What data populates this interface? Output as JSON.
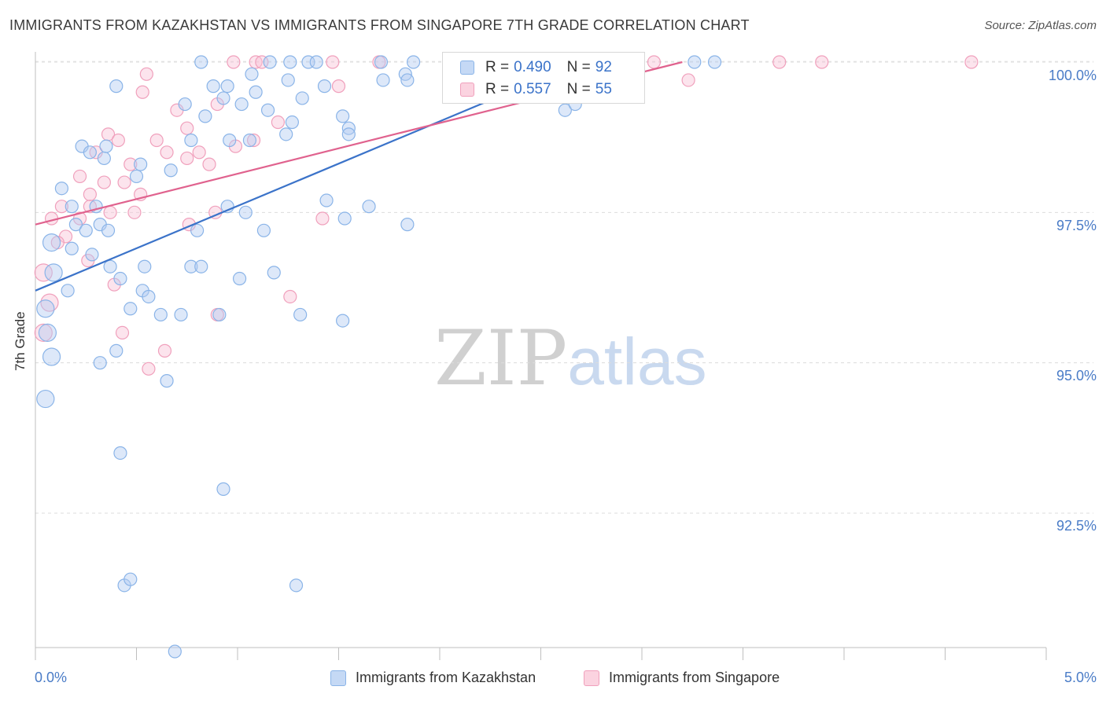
{
  "header": {
    "title": "IMMIGRANTS FROM KAZAKHSTAN VS IMMIGRANTS FROM SINGAPORE 7TH GRADE CORRELATION CHART",
    "source": "Source: ZipAtlas.com"
  },
  "watermark": {
    "zip": "ZIP",
    "atlas": "atlas"
  },
  "legend": {
    "r_label": "R =",
    "n_label": "N =",
    "rows": [
      {
        "r": "0.490",
        "n": "92",
        "color": "#8ab4e8",
        "fill": "#c5d9f5"
      },
      {
        "r": "0.557",
        "n": "55",
        "color": "#f0a0bc",
        "fill": "#fbd3e0"
      }
    ]
  },
  "bottom_legend": [
    {
      "label": "Immigrants from Kazakhstan",
      "color": "#8ab4e8",
      "fill": "#c5d9f5"
    },
    {
      "label": "Immigrants from Singapore",
      "color": "#f0a0bc",
      "fill": "#fbd3e0"
    }
  ],
  "chart_data": {
    "type": "scatter",
    "title": "IMMIGRANTS FROM KAZAKHSTAN VS IMMIGRANTS FROM SINGAPORE 7TH GRADE CORRELATION CHART",
    "ylabel": "7th Grade",
    "xlabel": "",
    "xlim": [
      0,
      5
    ],
    "ylim": [
      90.0,
      100.4
    ],
    "x_tick_labels": [
      "0.0%",
      "5.0%"
    ],
    "y_ticks": [
      92.5,
      95.0,
      97.5,
      100.0
    ],
    "y_tick_labels": [
      "92.5%",
      "95.0%",
      "97.5%",
      "100.0%"
    ],
    "grid": "horizontal dashed",
    "colors": {
      "kazakhstan": "#3b73c9",
      "singapore": "#e0628e"
    },
    "series": [
      {
        "name": "Immigrants from Kazakhstan",
        "color": "#3b73c9",
        "trend": {
          "x": [
            0.0,
            2.7
          ],
          "y": [
            96.2,
            100.0
          ]
        },
        "points": [
          [
            0.82,
            100.0
          ],
          [
            0.95,
            99.6
          ],
          [
            1.07,
            99.8
          ],
          [
            1.16,
            100.0
          ],
          [
            1.09,
            99.5
          ],
          [
            1.26,
            100.0
          ],
          [
            1.35,
            100.0
          ],
          [
            1.39,
            100.0
          ],
          [
            1.71,
            100.0
          ],
          [
            1.87,
            100.0
          ],
          [
            2.43,
            100.0
          ],
          [
            2.93,
            100.0
          ],
          [
            3.26,
            100.0
          ],
          [
            3.36,
            100.0
          ],
          [
            0.74,
            99.3
          ],
          [
            0.88,
            99.6
          ],
          [
            1.02,
            99.3
          ],
          [
            1.15,
            99.2
          ],
          [
            1.25,
            99.7
          ],
          [
            1.43,
            99.6
          ],
          [
            1.72,
            99.7
          ],
          [
            1.83,
            99.8
          ],
          [
            1.84,
            99.7
          ],
          [
            2.62,
            99.2
          ],
          [
            2.67,
            99.3
          ],
          [
            0.84,
            99.1
          ],
          [
            0.93,
            99.4
          ],
          [
            1.27,
            99.0
          ],
          [
            1.32,
            99.4
          ],
          [
            1.52,
            99.1
          ],
          [
            1.55,
            98.9
          ],
          [
            0.23,
            98.6
          ],
          [
            0.35,
            98.6
          ],
          [
            0.27,
            98.5
          ],
          [
            0.52,
            98.3
          ],
          [
            0.67,
            98.2
          ],
          [
            0.5,
            98.1
          ],
          [
            0.77,
            98.7
          ],
          [
            0.96,
            98.7
          ],
          [
            1.06,
            98.7
          ],
          [
            1.24,
            98.8
          ],
          [
            1.55,
            98.8
          ],
          [
            0.13,
            97.9
          ],
          [
            0.18,
            97.6
          ],
          [
            0.3,
            97.6
          ],
          [
            0.95,
            97.6
          ],
          [
            1.04,
            97.5
          ],
          [
            1.53,
            97.4
          ],
          [
            1.13,
            97.2
          ],
          [
            1.65,
            97.6
          ],
          [
            0.2,
            97.3
          ],
          [
            0.25,
            97.2
          ],
          [
            0.32,
            97.3
          ],
          [
            0.36,
            97.2
          ],
          [
            0.8,
            97.2
          ],
          [
            1.44,
            97.7
          ],
          [
            1.84,
            97.3
          ],
          [
            0.08,
            97.0
          ],
          [
            0.18,
            96.9
          ],
          [
            0.28,
            96.8
          ],
          [
            0.37,
            96.6
          ],
          [
            0.54,
            96.6
          ],
          [
            0.77,
            96.6
          ],
          [
            0.82,
            96.6
          ],
          [
            1.01,
            96.4
          ],
          [
            1.18,
            96.5
          ],
          [
            0.09,
            96.5
          ],
          [
            0.42,
            96.4
          ],
          [
            0.16,
            96.2
          ],
          [
            0.53,
            96.2
          ],
          [
            0.47,
            95.9
          ],
          [
            0.62,
            95.8
          ],
          [
            0.72,
            95.8
          ],
          [
            0.91,
            95.8
          ],
          [
            1.31,
            95.8
          ],
          [
            1.52,
            95.7
          ],
          [
            0.05,
            95.9
          ],
          [
            0.06,
            95.5
          ],
          [
            0.08,
            95.1
          ],
          [
            0.32,
            95.0
          ],
          [
            0.4,
            95.2
          ],
          [
            0.65,
            94.7
          ],
          [
            0.05,
            94.4
          ],
          [
            0.42,
            93.5
          ],
          [
            0.93,
            92.9
          ],
          [
            0.44,
            91.3
          ],
          [
            0.47,
            91.4
          ],
          [
            1.29,
            91.3
          ],
          [
            0.69,
            90.2
          ],
          [
            0.56,
            96.1
          ],
          [
            0.34,
            98.4
          ],
          [
            0.4,
            99.6
          ]
        ]
      },
      {
        "name": "Immigrants from Singapore",
        "color": "#e0628e",
        "trend": {
          "x": [
            0.0,
            3.2
          ],
          "y": [
            97.3,
            100.0
          ]
        },
        "points": [
          [
            0.98,
            100.0
          ],
          [
            1.09,
            100.0
          ],
          [
            1.12,
            100.0
          ],
          [
            1.47,
            100.0
          ],
          [
            1.7,
            100.0
          ],
          [
            2.78,
            100.0
          ],
          [
            3.06,
            100.0
          ],
          [
            3.68,
            100.0
          ],
          [
            3.89,
            100.0
          ],
          [
            4.63,
            100.0
          ],
          [
            0.53,
            99.5
          ],
          [
            0.55,
            99.8
          ],
          [
            1.5,
            99.6
          ],
          [
            3.23,
            99.7
          ],
          [
            0.7,
            99.2
          ],
          [
            0.9,
            99.3
          ],
          [
            1.2,
            99.0
          ],
          [
            0.36,
            98.8
          ],
          [
            0.41,
            98.7
          ],
          [
            0.6,
            98.7
          ],
          [
            0.75,
            98.9
          ],
          [
            1.08,
            98.7
          ],
          [
            0.3,
            98.5
          ],
          [
            0.47,
            98.3
          ],
          [
            0.65,
            98.5
          ],
          [
            0.75,
            98.4
          ],
          [
            0.81,
            98.5
          ],
          [
            0.86,
            98.3
          ],
          [
            0.99,
            98.6
          ],
          [
            0.22,
            98.1
          ],
          [
            0.34,
            98.0
          ],
          [
            0.27,
            97.8
          ],
          [
            0.44,
            98.0
          ],
          [
            0.52,
            97.8
          ],
          [
            0.13,
            97.6
          ],
          [
            0.22,
            97.4
          ],
          [
            0.27,
            97.6
          ],
          [
            0.37,
            97.5
          ],
          [
            0.49,
            97.5
          ],
          [
            0.89,
            97.5
          ],
          [
            0.08,
            97.4
          ],
          [
            0.15,
            97.1
          ],
          [
            0.76,
            97.3
          ],
          [
            1.42,
            97.4
          ],
          [
            0.11,
            97.0
          ],
          [
            0.26,
            96.7
          ],
          [
            0.04,
            96.5
          ],
          [
            0.39,
            96.3
          ],
          [
            0.07,
            96.0
          ],
          [
            1.26,
            96.1
          ],
          [
            0.9,
            95.8
          ],
          [
            0.43,
            95.5
          ],
          [
            0.04,
            95.5
          ],
          [
            0.64,
            95.2
          ],
          [
            0.56,
            94.9
          ]
        ]
      }
    ]
  }
}
